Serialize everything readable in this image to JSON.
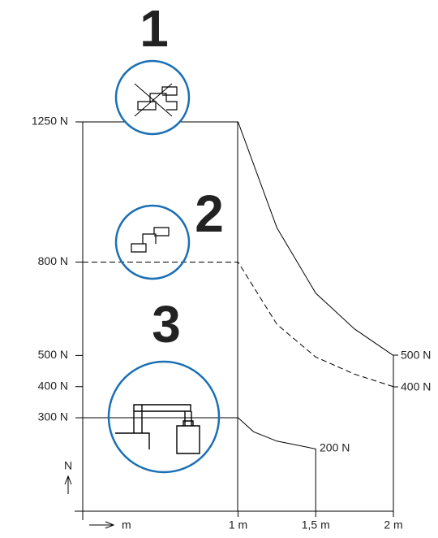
{
  "chart_data": {
    "type": "line",
    "x_label": "m",
    "y_label": "N",
    "xlim": [
      0,
      2
    ],
    "xticks": [
      {
        "value": 1,
        "label": "1 m"
      },
      {
        "value": 1.5,
        "label": "1,5 m"
      },
      {
        "value": 2,
        "label": "2 m"
      }
    ],
    "ylim": [
      0,
      1250
    ],
    "yticks": [
      {
        "value": 300,
        "label": "300 N"
      },
      {
        "value": 400,
        "label": "400 N"
      },
      {
        "value": 500,
        "label": "500 N"
      },
      {
        "value": 800,
        "label": "800 N"
      },
      {
        "value": 1250,
        "label": "1250 N"
      }
    ],
    "series": [
      {
        "color": "#000000",
        "line_style": "solid",
        "x": [
          0,
          1,
          1.25,
          1.5,
          1.75,
          2
        ],
        "values": [
          1250,
          1250,
          910,
          700,
          585,
          500
        ]
      },
      {
        "color": "#000000",
        "line_style": "dashed",
        "x": [
          0,
          1,
          1.25,
          1.5,
          1.75,
          2
        ],
        "values": [
          800,
          800,
          600,
          495,
          440,
          400
        ]
      },
      {
        "color": "#000000",
        "line_style": "solid",
        "x": [
          0,
          1,
          1.1,
          1.25,
          1.5,
          1.5
        ],
        "values": [
          300,
          300,
          255,
          225,
          200,
          0
        ]
      }
    ],
    "annotations": [
      "500 N",
      "400 N",
      "200 N"
    ],
    "zones": [
      "1",
      "2",
      "3"
    ],
    "zone_color": "#1a6fb5"
  }
}
